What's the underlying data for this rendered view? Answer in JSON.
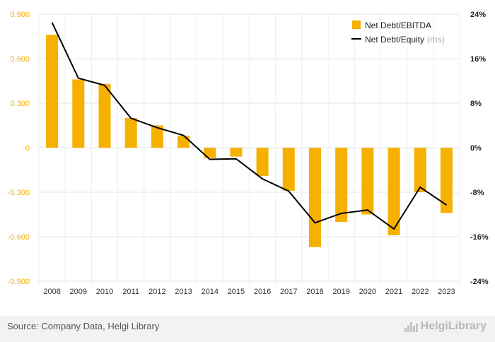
{
  "chart_data": {
    "type": "bar",
    "categories": [
      "2008",
      "2009",
      "2010",
      "2011",
      "2012",
      "2013",
      "2014",
      "2015",
      "2016",
      "2017",
      "2018",
      "2019",
      "2020",
      "2021",
      "2022",
      "2023"
    ],
    "series": [
      {
        "name": "Net Debt/EBITDA",
        "axis": "left",
        "type": "bar",
        "color": "#f5b000",
        "values": [
          0.76,
          0.46,
          0.43,
          0.2,
          0.15,
          0.08,
          -0.07,
          -0.06,
          -0.19,
          -0.29,
          -0.67,
          -0.5,
          -0.45,
          -0.59,
          -0.3,
          -0.44
        ]
      },
      {
        "name": "Net Debt/Equity",
        "axis": "right",
        "type": "line",
        "color": "#000000",
        "values": [
          22.5,
          12.5,
          11.2,
          5.3,
          3.6,
          2.2,
          -2.1,
          -2.0,
          -5.6,
          -7.8,
          -13.5,
          -11.8,
          -11.2,
          -14.6,
          -7.1,
          -10.3
        ]
      }
    ],
    "yaxis_left": {
      "ticks": [
        "0.900",
        "0.600",
        "0.300",
        "0",
        "-0.300",
        "-0.600",
        "-0.900"
      ],
      "range": [
        -0.9,
        0.9
      ]
    },
    "yaxis_right": {
      "ticks": [
        "24%",
        "16%",
        "8%",
        "0%",
        "-8%",
        "-16%",
        "-24%"
      ],
      "range": [
        -24,
        24
      ]
    },
    "legend": {
      "position": "top-right",
      "items": [
        {
          "label": "Net Debt/EBITDA",
          "suffix": ""
        },
        {
          "label": "Net Debt/Equity",
          "suffix": "(rhs)"
        }
      ]
    },
    "grid": true
  },
  "footer": {
    "source": "Source: Company Data, Helgi Library",
    "brand": "HelgiLibrary"
  },
  "colors": {
    "bar": "#f5b000",
    "line": "#000000",
    "left_axis_labels": "#f5b000",
    "grid": "#e6e6e6"
  }
}
